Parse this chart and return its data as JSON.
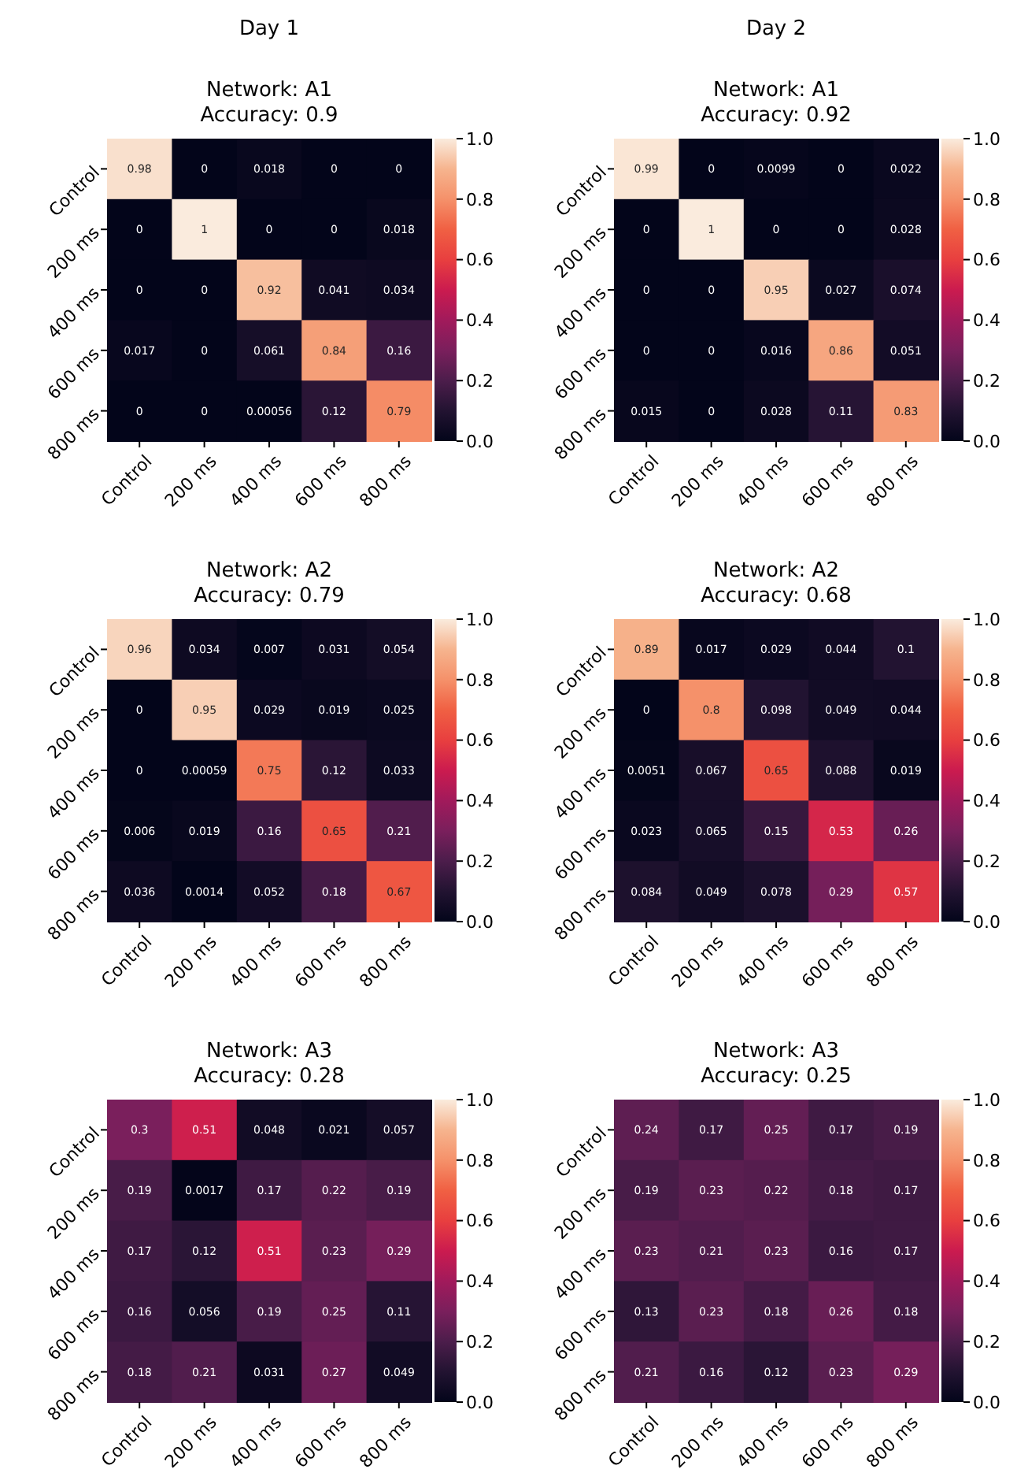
{
  "chart_data": [
    {
      "type": "heatmap",
      "annotations": [
        "Day 1"
      ],
      "title": "Network: A1\nAccuracy: 0.9",
      "categories": [
        "Control",
        "200 ms",
        "400 ms",
        "600 ms",
        "800 ms"
      ],
      "y_categories": [
        "Control",
        "200 ms",
        "400 ms",
        "600 ms",
        "800 ms"
      ],
      "cells": [
        [
          0.98,
          0,
          0.018,
          0,
          0
        ],
        [
          0,
          1,
          0,
          0,
          0.018
        ],
        [
          0,
          0,
          0.92,
          0.041,
          0.034
        ],
        [
          0.017,
          0,
          0.061,
          0.84,
          0.16
        ],
        [
          0,
          0,
          0.00056,
          0.12,
          0.79
        ]
      ],
      "clim": [
        0,
        1
      ],
      "cticks": [
        {
          "value": 0,
          "label": "0.0"
        },
        {
          "value": 0.2,
          "label": "0.2"
        },
        {
          "value": 0.4,
          "label": "0.4"
        },
        {
          "value": 0.6,
          "label": "0.6"
        },
        {
          "value": 0.8,
          "label": "0.8"
        },
        {
          "value": 1,
          "label": "1.0"
        }
      ],
      "data_labels": true
    },
    {
      "type": "heatmap",
      "annotations": [
        "Day 2"
      ],
      "title": "Network: A1\nAccuracy: 0.92",
      "categories": [
        "Control",
        "200 ms",
        "400 ms",
        "600 ms",
        "800 ms"
      ],
      "y_categories": [
        "Control",
        "200 ms",
        "400 ms",
        "600 ms",
        "800 ms"
      ],
      "cells": [
        [
          0.99,
          0,
          0.0099,
          0,
          0.022
        ],
        [
          0,
          1,
          0,
          0,
          0.028
        ],
        [
          0,
          0,
          0.95,
          0.027,
          0.074
        ],
        [
          0,
          0,
          0.016,
          0.86,
          0.051
        ],
        [
          0.015,
          0,
          0.028,
          0.11,
          0.83
        ]
      ],
      "clim": [
        0,
        1
      ],
      "cticks": [
        {
          "value": 0,
          "label": "0.0"
        },
        {
          "value": 0.2,
          "label": "0.2"
        },
        {
          "value": 0.4,
          "label": "0.4"
        },
        {
          "value": 0.6,
          "label": "0.6"
        },
        {
          "value": 0.8,
          "label": "0.8"
        },
        {
          "value": 1,
          "label": "1.0"
        }
      ],
      "data_labels": true
    },
    {
      "type": "heatmap",
      "title": "Network: A2\nAccuracy: 0.79",
      "categories": [
        "Control",
        "200 ms",
        "400 ms",
        "600 ms",
        "800 ms"
      ],
      "y_categories": [
        "Control",
        "200 ms",
        "400 ms",
        "600 ms",
        "800 ms"
      ],
      "cells": [
        [
          0.96,
          0.034,
          0.007,
          0.031,
          0.054
        ],
        [
          0,
          0.95,
          0.029,
          0.019,
          0.025
        ],
        [
          0,
          0.00059,
          0.75,
          0.12,
          0.033
        ],
        [
          0.006,
          0.019,
          0.16,
          0.65,
          0.21
        ],
        [
          0.036,
          0.0014,
          0.052,
          0.18,
          0.67
        ]
      ],
      "clim": [
        0,
        1
      ],
      "cticks": [
        {
          "value": 0,
          "label": "0.0"
        },
        {
          "value": 0.2,
          "label": "0.2"
        },
        {
          "value": 0.4,
          "label": "0.4"
        },
        {
          "value": 0.6,
          "label": "0.6"
        },
        {
          "value": 0.8,
          "label": "0.8"
        },
        {
          "value": 1,
          "label": "1.0"
        }
      ],
      "data_labels": true
    },
    {
      "type": "heatmap",
      "title": "Network: A2\nAccuracy: 0.68",
      "categories": [
        "Control",
        "200 ms",
        "400 ms",
        "600 ms",
        "800 ms"
      ],
      "y_categories": [
        "Control",
        "200 ms",
        "400 ms",
        "600 ms",
        "800 ms"
      ],
      "cells": [
        [
          0.89,
          0.017,
          0.029,
          0.044,
          0.1
        ],
        [
          0,
          0.8,
          0.098,
          0.049,
          0.044
        ],
        [
          0.0051,
          0.067,
          0.65,
          0.088,
          0.019
        ],
        [
          0.023,
          0.065,
          0.15,
          0.53,
          0.26
        ],
        [
          0.084,
          0.049,
          0.078,
          0.29,
          0.57
        ]
      ],
      "clim": [
        0,
        1
      ],
      "cticks": [
        {
          "value": 0,
          "label": "0.0"
        },
        {
          "value": 0.2,
          "label": "0.2"
        },
        {
          "value": 0.4,
          "label": "0.4"
        },
        {
          "value": 0.6,
          "label": "0.6"
        },
        {
          "value": 0.8,
          "label": "0.8"
        },
        {
          "value": 1,
          "label": "1.0"
        }
      ],
      "data_labels": true
    },
    {
      "type": "heatmap",
      "title": "Network: A3\nAccuracy: 0.28",
      "categories": [
        "Control",
        "200 ms",
        "400 ms",
        "600 ms",
        "800 ms"
      ],
      "y_categories": [
        "Control",
        "200 ms",
        "400 ms",
        "600 ms",
        "800 ms"
      ],
      "cells": [
        [
          0.3,
          0.51,
          0.048,
          0.021,
          0.057
        ],
        [
          0.19,
          0.0017,
          0.17,
          0.22,
          0.19
        ],
        [
          0.17,
          0.12,
          0.51,
          0.23,
          0.29
        ],
        [
          0.16,
          0.056,
          0.19,
          0.25,
          0.11
        ],
        [
          0.18,
          0.21,
          0.031,
          0.27,
          0.049
        ]
      ],
      "clim": [
        0,
        1
      ],
      "cticks": [
        {
          "value": 0,
          "label": "0.0"
        },
        {
          "value": 0.2,
          "label": "0.2"
        },
        {
          "value": 0.4,
          "label": "0.4"
        },
        {
          "value": 0.6,
          "label": "0.6"
        },
        {
          "value": 0.8,
          "label": "0.8"
        },
        {
          "value": 1,
          "label": "1.0"
        }
      ],
      "data_labels": true
    },
    {
      "type": "heatmap",
      "title": "Network: A3\nAccuracy: 0.25",
      "categories": [
        "Control",
        "200 ms",
        "400 ms",
        "600 ms",
        "800 ms"
      ],
      "y_categories": [
        "Control",
        "200 ms",
        "400 ms",
        "600 ms",
        "800 ms"
      ],
      "cells": [
        [
          0.24,
          0.17,
          0.25,
          0.17,
          0.19
        ],
        [
          0.19,
          0.23,
          0.22,
          0.18,
          0.17
        ],
        [
          0.23,
          0.21,
          0.23,
          0.16,
          0.17
        ],
        [
          0.13,
          0.23,
          0.18,
          0.26,
          0.18
        ],
        [
          0.21,
          0.16,
          0.12,
          0.23,
          0.29
        ]
      ],
      "clim": [
        0,
        1
      ],
      "cticks": [
        {
          "value": 0,
          "label": "0.0"
        },
        {
          "value": 0.2,
          "label": "0.2"
        },
        {
          "value": 0.4,
          "label": "0.4"
        },
        {
          "value": 0.6,
          "label": "0.6"
        },
        {
          "value": 0.8,
          "label": "0.8"
        },
        {
          "value": 1,
          "label": "1.0"
        }
      ],
      "data_labels": true
    }
  ]
}
